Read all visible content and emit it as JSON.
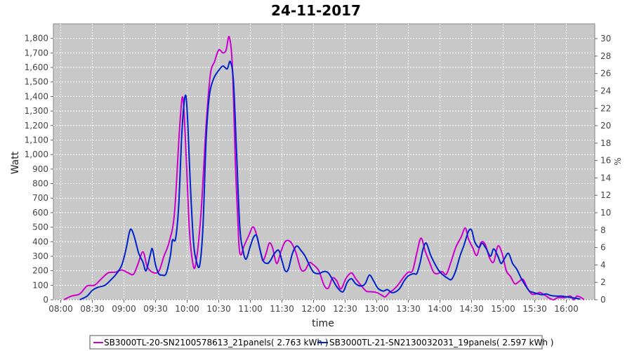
{
  "chart_data": {
    "type": "line",
    "title": "24-11-2017",
    "xlabel": "time",
    "ylabel": "Watt",
    "y2label": "%",
    "xlim": [
      "07:53",
      "16:27"
    ],
    "xticks": [
      "08:00",
      "08:30",
      "09:00",
      "09:30",
      "10:00",
      "10:30",
      "11:00",
      "11:30",
      "12:00",
      "12:30",
      "13:00",
      "13:30",
      "14:00",
      "14:30",
      "15:00",
      "15:30",
      "16:00"
    ],
    "ylim": [
      0,
      1900
    ],
    "yticks": [
      0,
      100,
      200,
      300,
      400,
      500,
      600,
      700,
      800,
      900,
      1000,
      1100,
      1200,
      1300,
      1400,
      1500,
      1600,
      1700,
      1800
    ],
    "ytick_labels": [
      "0",
      "100",
      "200",
      "300",
      "400",
      "500",
      "600",
      "700",
      "800",
      "900",
      "1,000",
      "1,100",
      "1,200",
      "1,300",
      "1,400",
      "1,500",
      "1,600",
      "1,700",
      "1,800"
    ],
    "y2lim": [
      0,
      31.7
    ],
    "y2ticks": [
      0,
      2,
      4,
      6,
      8,
      10,
      12,
      14,
      16,
      18,
      20,
      22,
      24,
      26,
      28,
      30
    ],
    "grid": true,
    "background": "#c8c8c8",
    "legend_position": "bottom",
    "series": [
      {
        "name": "SB3000TL-20-SN2100578613_21panels( 2.763 kWh )",
        "color": "#cc00cc",
        "points": [
          [
            "08:03",
            0
          ],
          [
            "08:10",
            25
          ],
          [
            "08:18",
            40
          ],
          [
            "08:25",
            95
          ],
          [
            "08:32",
            100
          ],
          [
            "08:38",
            140
          ],
          [
            "08:45",
            185
          ],
          [
            "08:52",
            190
          ],
          [
            "08:58",
            205
          ],
          [
            "09:04",
            185
          ],
          [
            "09:09",
            175
          ],
          [
            "09:13",
            240
          ],
          [
            "09:18",
            330
          ],
          [
            "09:22",
            230
          ],
          [
            "09:27",
            190
          ],
          [
            "09:33",
            195
          ],
          [
            "09:38",
            300
          ],
          [
            "09:43",
            400
          ],
          [
            "09:48",
            600
          ],
          [
            "09:53",
            1200
          ],
          [
            "09:56",
            1390
          ],
          [
            "09:59",
            1000
          ],
          [
            "10:02",
            500
          ],
          [
            "10:05",
            270
          ],
          [
            "10:08",
            240
          ],
          [
            "10:13",
            580
          ],
          [
            "10:18",
            1200
          ],
          [
            "10:22",
            1550
          ],
          [
            "10:26",
            1640
          ],
          [
            "10:30",
            1720
          ],
          [
            "10:34",
            1700
          ],
          [
            "10:37",
            1720
          ],
          [
            "10:40",
            1810
          ],
          [
            "10:43",
            1600
          ],
          [
            "10:46",
            900
          ],
          [
            "10:49",
            400
          ],
          [
            "10:51",
            310
          ],
          [
            "10:54",
            370
          ],
          [
            "10:59",
            450
          ],
          [
            "11:02",
            500
          ],
          [
            "11:05",
            470
          ],
          [
            "11:10",
            320
          ],
          [
            "11:12",
            270
          ],
          [
            "11:15",
            320
          ],
          [
            "11:18",
            390
          ],
          [
            "11:21",
            360
          ],
          [
            "11:25",
            250
          ],
          [
            "11:29",
            330
          ],
          [
            "11:33",
            400
          ],
          [
            "11:38",
            400
          ],
          [
            "11:43",
            330
          ],
          [
            "11:48",
            210
          ],
          [
            "11:52",
            205
          ],
          [
            "11:56",
            255
          ],
          [
            "12:00",
            240
          ],
          [
            "12:05",
            200
          ],
          [
            "12:10",
            100
          ],
          [
            "12:14",
            80
          ],
          [
            "12:18",
            150
          ],
          [
            "12:22",
            130
          ],
          [
            "12:26",
            75
          ],
          [
            "12:31",
            150
          ],
          [
            "12:36",
            185
          ],
          [
            "12:40",
            145
          ],
          [
            "12:45",
            100
          ],
          [
            "12:50",
            60
          ],
          [
            "12:55",
            55
          ],
          [
            "13:00",
            50
          ],
          [
            "13:05",
            30
          ],
          [
            "13:08",
            20
          ],
          [
            "13:12",
            50
          ],
          [
            "13:16",
            70
          ],
          [
            "13:20",
            100
          ],
          [
            "13:26",
            160
          ],
          [
            "13:30",
            190
          ],
          [
            "13:34",
            200
          ],
          [
            "13:38",
            320
          ],
          [
            "13:42",
            425
          ],
          [
            "13:46",
            335
          ],
          [
            "13:50",
            260
          ],
          [
            "13:54",
            190
          ],
          [
            "13:58",
            180
          ],
          [
            "14:02",
            195
          ],
          [
            "14:06",
            175
          ],
          [
            "14:10",
            250
          ],
          [
            "14:15",
            360
          ],
          [
            "14:20",
            430
          ],
          [
            "14:24",
            495
          ],
          [
            "14:27",
            420
          ],
          [
            "14:31",
            360
          ],
          [
            "14:35",
            305
          ],
          [
            "14:39",
            395
          ],
          [
            "14:43",
            380
          ],
          [
            "14:47",
            290
          ],
          [
            "14:51",
            260
          ],
          [
            "14:55",
            370
          ],
          [
            "14:59",
            320
          ],
          [
            "15:03",
            200
          ],
          [
            "15:07",
            160
          ],
          [
            "15:11",
            110
          ],
          [
            "15:15",
            125
          ],
          [
            "15:19",
            140
          ],
          [
            "15:23",
            80
          ],
          [
            "15:27",
            40
          ],
          [
            "15:31",
            40
          ],
          [
            "15:35",
            50
          ],
          [
            "15:40",
            30
          ],
          [
            "15:44",
            10
          ],
          [
            "15:48",
            0
          ],
          [
            "15:52",
            15
          ],
          [
            "15:58",
            15
          ],
          [
            "16:04",
            25
          ],
          [
            "16:07",
            0
          ],
          [
            "16:10",
            25
          ],
          [
            "16:14",
            15
          ],
          [
            "16:17",
            0
          ]
        ]
      },
      {
        "name": "SB3000TL-21-SN2130032031_19panels( 2.597 kWh )",
        "color": "#0022cc",
        "points": [
          [
            "08:18",
            0
          ],
          [
            "08:25",
            25
          ],
          [
            "08:30",
            65
          ],
          [
            "08:35",
            85
          ],
          [
            "08:42",
            100
          ],
          [
            "08:48",
            140
          ],
          [
            "08:53",
            180
          ],
          [
            "08:58",
            240
          ],
          [
            "09:02",
            350
          ],
          [
            "09:05",
            460
          ],
          [
            "09:07",
            485
          ],
          [
            "09:10",
            430
          ],
          [
            "09:14",
            320
          ],
          [
            "09:18",
            260
          ],
          [
            "09:21",
            200
          ],
          [
            "09:25",
            310
          ],
          [
            "09:27",
            350
          ],
          [
            "09:30",
            240
          ],
          [
            "09:33",
            180
          ],
          [
            "09:36",
            170
          ],
          [
            "09:40",
            180
          ],
          [
            "09:44",
            300
          ],
          [
            "09:46",
            410
          ],
          [
            "09:49",
            420
          ],
          [
            "09:52",
            650
          ],
          [
            "09:55",
            1150
          ],
          [
            "09:58",
            1400
          ],
          [
            "10:00",
            1300
          ],
          [
            "10:03",
            800
          ],
          [
            "10:06",
            400
          ],
          [
            "10:09",
            260
          ],
          [
            "10:12",
            240
          ],
          [
            "10:15",
            500
          ],
          [
            "10:18",
            1100
          ],
          [
            "10:21",
            1400
          ],
          [
            "10:25",
            1520
          ],
          [
            "10:30",
            1580
          ],
          [
            "10:34",
            1610
          ],
          [
            "10:38",
            1590
          ],
          [
            "10:41",
            1640
          ],
          [
            "10:44",
            1500
          ],
          [
            "10:47",
            1000
          ],
          [
            "10:50",
            500
          ],
          [
            "10:53",
            340
          ],
          [
            "10:56",
            280
          ],
          [
            "11:00",
            370
          ],
          [
            "11:03",
            430
          ],
          [
            "11:06",
            440
          ],
          [
            "11:09",
            350
          ],
          [
            "11:12",
            270
          ],
          [
            "11:16",
            250
          ],
          [
            "11:19",
            270
          ],
          [
            "11:23",
            320
          ],
          [
            "11:27",
            340
          ],
          [
            "11:30",
            270
          ],
          [
            "11:33",
            200
          ],
          [
            "11:36",
            210
          ],
          [
            "11:40",
            320
          ],
          [
            "11:44",
            370
          ],
          [
            "11:48",
            340
          ],
          [
            "11:52",
            300
          ],
          [
            "11:56",
            240
          ],
          [
            "12:00",
            190
          ],
          [
            "12:05",
            180
          ],
          [
            "12:10",
            195
          ],
          [
            "12:14",
            185
          ],
          [
            "12:18",
            140
          ],
          [
            "12:23",
            80
          ],
          [
            "12:28",
            55
          ],
          [
            "12:32",
            120
          ],
          [
            "12:36",
            145
          ],
          [
            "12:40",
            110
          ],
          [
            "12:45",
            95
          ],
          [
            "12:49",
            110
          ],
          [
            "12:53",
            170
          ],
          [
            "12:57",
            130
          ],
          [
            "13:01",
            80
          ],
          [
            "13:06",
            60
          ],
          [
            "13:10",
            70
          ],
          [
            "13:14",
            50
          ],
          [
            "13:18",
            55
          ],
          [
            "13:22",
            80
          ],
          [
            "13:26",
            130
          ],
          [
            "13:30",
            165
          ],
          [
            "13:35",
            180
          ],
          [
            "13:38",
            180
          ],
          [
            "13:41",
            250
          ],
          [
            "13:44",
            350
          ],
          [
            "13:47",
            390
          ],
          [
            "13:51",
            310
          ],
          [
            "13:55",
            250
          ],
          [
            "13:59",
            200
          ],
          [
            "14:03",
            170
          ],
          [
            "14:07",
            150
          ],
          [
            "14:11",
            140
          ],
          [
            "14:15",
            200
          ],
          [
            "14:19",
            300
          ],
          [
            "14:23",
            380
          ],
          [
            "14:27",
            470
          ],
          [
            "14:30",
            480
          ],
          [
            "14:33",
            400
          ],
          [
            "14:37",
            360
          ],
          [
            "14:40",
            390
          ],
          [
            "14:44",
            350
          ],
          [
            "14:48",
            300
          ],
          [
            "14:51",
            350
          ],
          [
            "14:55",
            300
          ],
          [
            "14:58",
            250
          ],
          [
            "15:01",
            280
          ],
          [
            "15:05",
            320
          ],
          [
            "15:09",
            250
          ],
          [
            "15:13",
            210
          ],
          [
            "15:17",
            150
          ],
          [
            "15:21",
            100
          ],
          [
            "15:25",
            60
          ],
          [
            "15:29",
            50
          ],
          [
            "15:33",
            40
          ],
          [
            "15:37",
            35
          ],
          [
            "15:41",
            40
          ],
          [
            "15:45",
            30
          ],
          [
            "15:50",
            25
          ],
          [
            "15:55",
            25
          ],
          [
            "16:00",
            20
          ],
          [
            "16:05",
            15
          ],
          [
            "16:09",
            10
          ],
          [
            "16:13",
            5
          ]
        ]
      }
    ]
  }
}
